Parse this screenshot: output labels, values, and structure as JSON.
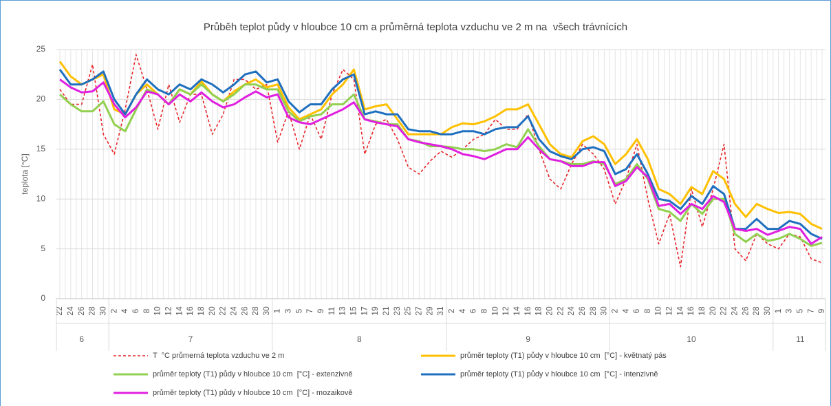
{
  "chart_data": {
    "type": "line",
    "title": "Průběh teplot půdy v hloubce 10 cm a průměrná teplota vzduchu ve 2 m na  všech trávnících",
    "y_label": "teplota [°C]",
    "categories": [
      "22",
      "24",
      "26",
      "28",
      "30",
      "2",
      "4",
      "6",
      "8",
      "10",
      "12",
      "14",
      "16",
      "18",
      "20",
      "22",
      "24",
      "26",
      "28",
      "30",
      "1",
      "3",
      "5",
      "7",
      "9",
      "11",
      "13",
      "15",
      "17",
      "19",
      "21",
      "23",
      "25",
      "27",
      "29",
      "31",
      "2",
      "4",
      "6",
      "8",
      "10",
      "12",
      "14",
      "16",
      "18",
      "20",
      "22",
      "24",
      "26",
      "28",
      "30",
      "2",
      "4",
      "6",
      "8",
      "10",
      "12",
      "14",
      "16",
      "18",
      "20",
      "22",
      "24",
      "26",
      "28",
      "30",
      "1",
      "3",
      "5",
      "7",
      "9"
    ],
    "groups": [
      "6",
      "7",
      "8",
      "9",
      "10",
      "11"
    ],
    "ylim": [
      0,
      25
    ],
    "yticks": [
      0,
      5,
      10,
      15,
      20,
      25
    ],
    "grid": true,
    "series": [
      {
        "name": "T  °C průmerná teplota vzduchu ve 2 m",
        "color": "#e8262a",
        "style": "dashed",
        "values": [
          21,
          19.5,
          19.5,
          23.5,
          16.5,
          14.5,
          19,
          24.5,
          21,
          17,
          21.5,
          17.7,
          20.5,
          20.5,
          16.5,
          18.5,
          22,
          22,
          21,
          21.5,
          15.7,
          18.8,
          15,
          18.5,
          16,
          20.5,
          23,
          22,
          14.5,
          17.5,
          18,
          16,
          13.2,
          12.5,
          13.8,
          14.8,
          14.2,
          15,
          16,
          16.5,
          18,
          17,
          17,
          18.5,
          15,
          12,
          11,
          13.5,
          15.5,
          14.5,
          13,
          9.5,
          12,
          15.5,
          10,
          5.5,
          8.5,
          3.2,
          11,
          7.2,
          11,
          15.5,
          5,
          3.8,
          6.5,
          5.5,
          5,
          6.5,
          6.2,
          4,
          3.6
        ]
      },
      {
        "name": "průměr teploty (T1) půdy v hloubce 10 cm  [°C] - květnatý pás",
        "color": "#ffc000",
        "style": "solid",
        "values": [
          23.8,
          22.3,
          21.5,
          22,
          22.5,
          19,
          18.5,
          20.5,
          21.5,
          20.5,
          19.5,
          21,
          20.5,
          21.8,
          20.5,
          19.8,
          20.8,
          21.5,
          22,
          21.2,
          21.5,
          19.2,
          18,
          18.5,
          19,
          20.5,
          21.5,
          23,
          19,
          19.3,
          19.5,
          18,
          16.5,
          16.5,
          16.5,
          16.5,
          17.2,
          17.6,
          17.5,
          17.8,
          18.3,
          19,
          19,
          19.5,
          17.5,
          15.5,
          14.5,
          14.2,
          15.8,
          16.3,
          15.5,
          13.5,
          14.5,
          16,
          14,
          11,
          10.5,
          9.5,
          11.2,
          10.5,
          12.8,
          12,
          9.5,
          8.2,
          9.5,
          9,
          8.6,
          8.7,
          8.5,
          7.5,
          7
        ]
      },
      {
        "name": "průměr teploty (T1) půdy v hloubce 10 cm  [°C] - extenzivně",
        "color": "#92d050",
        "style": "solid",
        "values": [
          20.5,
          19.5,
          18.8,
          18.8,
          19.8,
          17.5,
          16.8,
          19,
          21,
          20.5,
          19.5,
          21,
          20.5,
          21.5,
          20.5,
          19.8,
          20.5,
          21.5,
          21.5,
          21,
          21,
          18.8,
          17.8,
          18.3,
          18.5,
          19.5,
          19.5,
          20.5,
          18,
          17.8,
          17.5,
          17.5,
          16,
          15.8,
          15.3,
          15.3,
          15.2,
          15,
          15,
          14.8,
          15,
          15.5,
          15.2,
          17,
          15.3,
          14,
          13.8,
          13.5,
          13.5,
          13.8,
          13.5,
          11.5,
          12,
          13.5,
          12,
          9,
          8.7,
          7.8,
          9.5,
          8.5,
          10,
          10,
          6.5,
          5.7,
          6.5,
          5.8,
          6,
          6.5,
          6,
          5.3,
          5.6
        ]
      },
      {
        "name": "průměr teploty (T1) půdy v hloubce 10 cm  [°C] - intenzivně",
        "color": "#1f6fbf",
        "style": "solid",
        "values": [
          23,
          21.5,
          21.5,
          22,
          22.8,
          20,
          18.5,
          20.5,
          22,
          21,
          20.5,
          21.5,
          21,
          22,
          21.5,
          20.7,
          21.5,
          22.5,
          22.8,
          21.7,
          22,
          19.8,
          18.7,
          19.5,
          19.5,
          21,
          22,
          22.5,
          18.5,
          18.8,
          18.5,
          18.5,
          17,
          16.8,
          16.8,
          16.5,
          16.5,
          16.8,
          16.8,
          16.5,
          17,
          17.2,
          17.2,
          18.3,
          16,
          14.8,
          14.3,
          14,
          15,
          15.2,
          14.8,
          12.5,
          13,
          14.5,
          12.5,
          10,
          9.8,
          9,
          10.3,
          9.5,
          11.3,
          10.5,
          7,
          7,
          8,
          7,
          7,
          7.8,
          7.5,
          6.5,
          6
        ]
      },
      {
        "name": "průměr teploty (T1) půdy v hloubce 10 cm  [°C] - mozaikově",
        "color": "#e020e0",
        "style": "solid",
        "values": [
          22,
          21.2,
          20.7,
          20.8,
          21.7,
          19.5,
          18.2,
          19.2,
          20.8,
          20.5,
          19.5,
          20.5,
          19.8,
          20.7,
          19.8,
          19.2,
          19.5,
          20.2,
          20.8,
          20.2,
          20.5,
          18.2,
          17.7,
          17.5,
          18,
          18.5,
          19,
          19.7,
          18,
          17.7,
          17.5,
          17.3,
          16,
          15.7,
          15.5,
          15.3,
          15,
          14.5,
          14.3,
          14,
          14.5,
          15,
          15,
          16.2,
          15,
          14,
          13.8,
          13.3,
          13.3,
          13.7,
          13.7,
          11.3,
          11.8,
          13.2,
          12.2,
          9.3,
          9.5,
          8.5,
          9.5,
          9,
          10.3,
          9.7,
          7,
          6.8,
          7,
          6.4,
          6.8,
          7.2,
          7,
          5.5,
          6.2
        ]
      }
    ]
  }
}
